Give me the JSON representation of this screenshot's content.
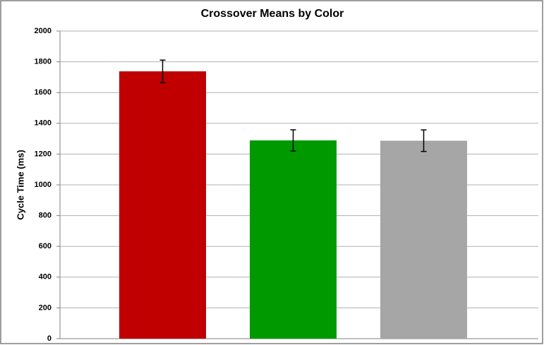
{
  "chart_data": {
    "type": "bar",
    "title": "Crossover Means by Color",
    "y_label": "Cycle Time (ms)",
    "categories": [
      null,
      null,
      null
    ],
    "values": [
      1738,
      1289,
      1287
    ],
    "errors": [
      73,
      69,
      70
    ],
    "colors": [
      "#c00000",
      "#009900",
      "#a6a6a6"
    ],
    "ylim": [
      0,
      2000
    ],
    "yticks": [
      0,
      200,
      400,
      600,
      800,
      1000,
      1200,
      1400,
      1600,
      1800,
      2000
    ],
    "grid": true
  }
}
